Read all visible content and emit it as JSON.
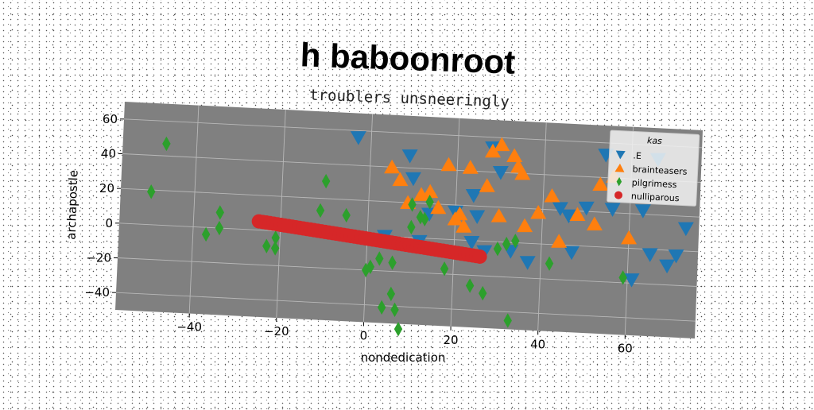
{
  "chart_data": {
    "type": "scatter",
    "title": "h baboonroot",
    "subtitle": "troublers unsneeringly",
    "xlabel": "nondedication",
    "ylabel": "archapostle",
    "xlim": [
      -57,
      76
    ],
    "ylim": [
      -50,
      70
    ],
    "xticks": [
      -40,
      -20,
      0,
      20,
      40,
      60
    ],
    "yticks": [
      -40,
      -20,
      0,
      20,
      40,
      60
    ],
    "xtick_labels": [
      "−40",
      "−20",
      "0",
      "20",
      "40",
      "60"
    ],
    "ytick_labels": [
      "−40",
      "−20",
      "0",
      "20",
      "40",
      "60"
    ],
    "grid": true,
    "background": "#808080",
    "legend": {
      "title": "kas",
      "placement": "top-right",
      "entries": [
        ".E",
        "brainteasers",
        "pilgrimess",
        "nulliparous"
      ]
    },
    "series": [
      {
        "name": ".E",
        "marker": "triangle-down",
        "color": "#1f77b4",
        "points": [
          [
            -3,
            56
          ],
          [
            9,
            47
          ],
          [
            10,
            34
          ],
          [
            24,
            26
          ],
          [
            28,
            54
          ],
          [
            30,
            40
          ],
          [
            25,
            14
          ],
          [
            44,
            21
          ],
          [
            46,
            17
          ],
          [
            50,
            22
          ],
          [
            54,
            53
          ],
          [
            56,
            22
          ],
          [
            63,
            22
          ],
          [
            66,
            52
          ],
          [
            65,
            -3
          ],
          [
            71,
            -3
          ],
          [
            69,
            -9
          ],
          [
            73,
            13
          ],
          [
            47,
            -4
          ],
          [
            37,
            -11
          ],
          [
            61,
            -18
          ],
          [
            27,
            -6
          ],
          [
            33,
            -5
          ],
          [
            12,
            -2
          ],
          [
            4,
            0
          ],
          [
            14,
            14
          ],
          [
            20,
            16
          ],
          [
            24,
            -1
          ]
        ]
      },
      {
        "name": "brainteasers",
        "marker": "triangle-up",
        "color": "#ff7f0e",
        "points": [
          [
            5,
            40
          ],
          [
            7,
            33
          ],
          [
            9,
            20
          ],
          [
            12,
            25
          ],
          [
            14,
            27
          ],
          [
            16,
            18
          ],
          [
            20,
            12
          ],
          [
            22,
            8
          ],
          [
            18,
            43
          ],
          [
            23,
            42
          ],
          [
            27,
            32
          ],
          [
            28,
            52
          ],
          [
            30,
            56
          ],
          [
            33,
            50
          ],
          [
            34,
            44
          ],
          [
            35,
            40
          ],
          [
            39,
            18
          ],
          [
            42,
            28
          ],
          [
            44,
            2
          ],
          [
            48,
            18
          ],
          [
            52,
            13
          ],
          [
            53,
            36
          ],
          [
            56,
            41
          ],
          [
            60,
            6
          ],
          [
            30,
            15
          ],
          [
            36,
            10
          ],
          [
            21,
            15
          ]
        ]
      },
      {
        "name": "pilgrimess",
        "marker": "diamond",
        "color": "#2ca02c",
        "points": [
          [
            -47,
            47
          ],
          [
            -50,
            19
          ],
          [
            -34,
            9
          ],
          [
            -34,
            0
          ],
          [
            -37,
            -4
          ],
          [
            -21,
            -4
          ],
          [
            -23,
            -9
          ],
          [
            -21,
            -10
          ],
          [
            -10,
            30
          ],
          [
            -11,
            13
          ],
          [
            -5,
            11
          ],
          [
            0,
            -20
          ],
          [
            1,
            -18
          ],
          [
            3,
            -13
          ],
          [
            6,
            -15
          ],
          [
            6,
            -33
          ],
          [
            7,
            -42
          ],
          [
            4,
            -41
          ],
          [
            8,
            -53
          ],
          [
            10,
            19
          ],
          [
            12,
            12
          ],
          [
            14,
            21
          ],
          [
            18,
            -17
          ],
          [
            24,
            -26
          ],
          [
            27,
            -30
          ],
          [
            30,
            -4
          ],
          [
            32,
            -1
          ],
          [
            33,
            -45
          ],
          [
            34,
            1
          ],
          [
            42,
            -11
          ],
          [
            59,
            -17
          ],
          [
            10,
            6
          ],
          [
            13,
            11
          ]
        ]
      },
      {
        "name": "nulliparous",
        "marker": "circle",
        "color": "#d62728",
        "line_from": [
          -25,
          5
        ],
        "line_to": [
          26,
          -9
        ]
      }
    ]
  }
}
